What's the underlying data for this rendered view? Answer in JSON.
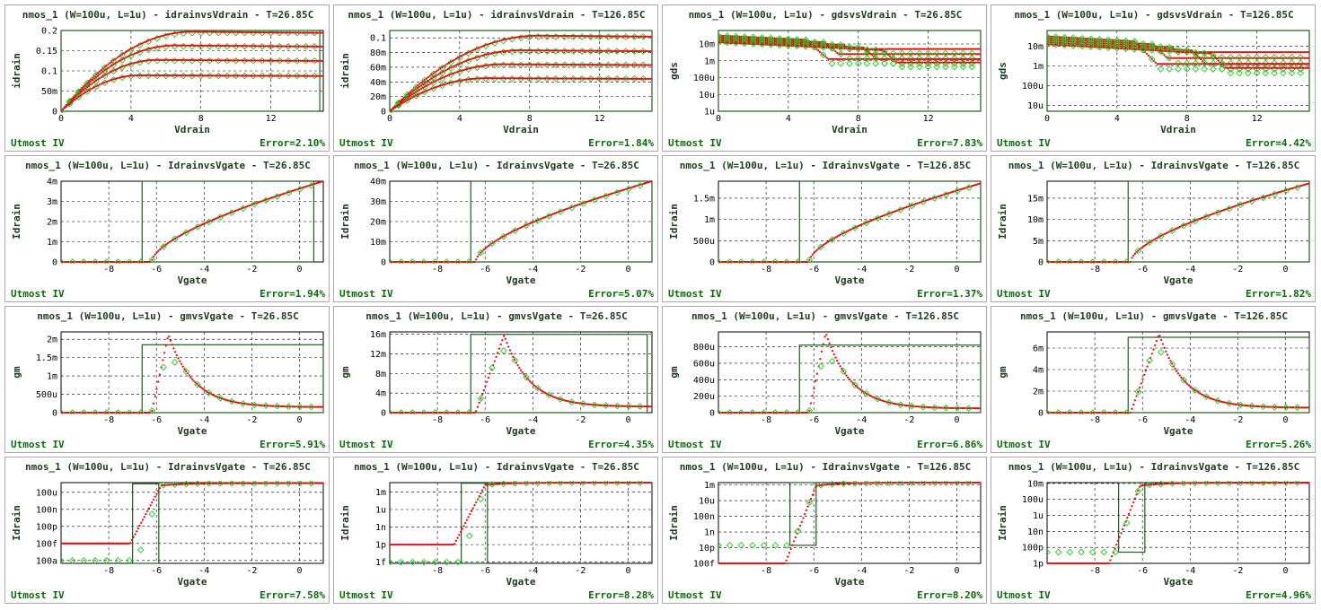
{
  "colors": {
    "measured": "#22cc22",
    "simulated": "#e01010",
    "frame": "#1f5c1f",
    "grid": "#000000",
    "text": "#1e3c1e",
    "footer": "#0b6b0b"
  },
  "footer_label": "Utmost IV",
  "chart_data": [
    {
      "type": "scatter",
      "title": "nmos_1 (W=100u, L=1u) - idrainvsVdrain - T=26.85C",
      "xlabel": "Vdrain",
      "ylabel": "idrain",
      "error": "Error=2.10%",
      "scale": "linear",
      "xlim": [
        0,
        15
      ],
      "ylim": [
        0,
        0.2
      ],
      "xticks": [
        {
          "v": 0,
          "t": "0"
        },
        {
          "v": 4,
          "t": "4"
        },
        {
          "v": 8,
          "t": "8"
        },
        {
          "v": 12,
          "t": "12"
        }
      ],
      "yticks": [
        {
          "v": 0,
          "t": "0"
        },
        {
          "v": 0.05,
          "t": "50m"
        },
        {
          "v": 0.1,
          "t": "0.1"
        },
        {
          "v": 0.15,
          "t": "0.15"
        },
        {
          "v": 0.2,
          "t": "0.2"
        }
      ],
      "box": {
        "x0": 0,
        "x1": 14.8,
        "y0": 0,
        "y1": 0.2
      },
      "kind": "idvd",
      "curves": [
        0.197,
        0.163,
        0.127,
        0.089
      ],
      "vsat": [
        7.5,
        6.5,
        5.5,
        4.5
      ]
    },
    {
      "type": "scatter",
      "title": "nmos_1 (W=100u, L=1u) - idrainvsVdrain - T=126.85C",
      "xlabel": "Vdrain",
      "ylabel": "idrain",
      "error": "Error=1.84%",
      "scale": "linear",
      "xlim": [
        0,
        15
      ],
      "ylim": [
        0,
        0.11
      ],
      "xticks": [
        {
          "v": 0,
          "t": "0"
        },
        {
          "v": 4,
          "t": "4"
        },
        {
          "v": 8,
          "t": "8"
        },
        {
          "v": 12,
          "t": "12"
        }
      ],
      "yticks": [
        {
          "v": 0,
          "t": "0"
        },
        {
          "v": 0.02,
          "t": "20m"
        },
        {
          "v": 0.04,
          "t": "40m"
        },
        {
          "v": 0.06,
          "t": "60m"
        },
        {
          "v": 0.08,
          "t": "80m"
        },
        {
          "v": 0.1,
          "t": "0.1"
        }
      ],
      "box": {
        "x0": 0,
        "x1": 15,
        "y0": 0,
        "y1": 0.11
      },
      "kind": "idvd",
      "curves": [
        0.103,
        0.083,
        0.064,
        0.045
      ],
      "vsat": [
        8.5,
        7.5,
        6.5,
        5.5
      ]
    },
    {
      "type": "scatter",
      "title": "nmos_1 (W=100u, L=1u) - gdsvsVdrain - T=26.85C",
      "xlabel": "Vdrain",
      "ylabel": "gds",
      "error": "Error=7.83%",
      "scale": "log",
      "xlim": [
        0,
        15
      ],
      "ylim": [
        -6,
        -1.2
      ],
      "xticks": [
        {
          "v": 0,
          "t": "0"
        },
        {
          "v": 4,
          "t": "4"
        },
        {
          "v": 8,
          "t": "8"
        },
        {
          "v": 12,
          "t": "12"
        }
      ],
      "yticks": [
        {
          "v": -6,
          "t": "1u"
        },
        {
          "v": -5,
          "t": "10u"
        },
        {
          "v": -4,
          "t": "100u"
        },
        {
          "v": -3,
          "t": "1m"
        },
        {
          "v": -2,
          "t": "10m"
        }
      ],
      "box": {
        "x0": 0,
        "x1": 15,
        "y0": -6,
        "y1": -1.2
      },
      "kind": "gds"
    },
    {
      "type": "scatter",
      "title": "nmos_1 (W=100u, L=1u) - gdsvsVdrain - T=126.85C",
      "xlabel": "Vdrain",
      "ylabel": "gds",
      "error": "Error=4.42%",
      "scale": "log",
      "xlim": [
        0,
        15
      ],
      "ylim": [
        -5.3,
        -1.2
      ],
      "xticks": [
        {
          "v": 0,
          "t": "0"
        },
        {
          "v": 4,
          "t": "4"
        },
        {
          "v": 8,
          "t": "8"
        },
        {
          "v": 12,
          "t": "12"
        }
      ],
      "yticks": [
        {
          "v": -5,
          "t": "10u"
        },
        {
          "v": -4,
          "t": "100u"
        },
        {
          "v": -3,
          "t": "1m"
        },
        {
          "v": -2,
          "t": "10m"
        }
      ],
      "box": {
        "x0": 0,
        "x1": 15,
        "y0": -5.3,
        "y1": -1.2
      },
      "kind": "gds"
    },
    {
      "type": "scatter",
      "title": "nmos_1 (W=100u, L=1u) - IdrainvsVgate - T=26.85C",
      "xlabel": "Vgate",
      "ylabel": "Idrain",
      "error": "Error=1.94%",
      "scale": "linear",
      "xlim": [
        -10,
        1
      ],
      "ylim": [
        0,
        0.004
      ],
      "xticks": [
        {
          "v": -8,
          "t": "-8"
        },
        {
          "v": -6,
          "t": "-6"
        },
        {
          "v": -4,
          "t": "-4"
        },
        {
          "v": -2,
          "t": "-2"
        },
        {
          "v": 0,
          "t": "0"
        }
      ],
      "yticks": [
        {
          "v": 0,
          "t": "0"
        },
        {
          "v": 0.001,
          "t": "1m"
        },
        {
          "v": 0.002,
          "t": "2m"
        },
        {
          "v": 0.003,
          "t": "3m"
        },
        {
          "v": 0.004,
          "t": "4m"
        }
      ],
      "box": {
        "x0": -6.6,
        "x1": 0.6,
        "y0": 0,
        "y1": 0.004
      },
      "kind": "idvg",
      "vth": -6.2,
      "imax": 0.004
    },
    {
      "type": "scatter",
      "title": "nmos_1 (W=100u, L=1u) - IdrainvsVgate - T=26.85C",
      "xlabel": "Vgate",
      "ylabel": "Idrain",
      "error": "Error=5.07%",
      "scale": "linear",
      "xlim": [
        -10,
        1
      ],
      "ylim": [
        0,
        0.04
      ],
      "xticks": [
        {
          "v": -8,
          "t": "-8"
        },
        {
          "v": -6,
          "t": "-6"
        },
        {
          "v": -4,
          "t": "-4"
        },
        {
          "v": -2,
          "t": "-2"
        },
        {
          "v": 0,
          "t": "0"
        }
      ],
      "yticks": [
        {
          "v": 0,
          "t": "0"
        },
        {
          "v": 0.01,
          "t": "10m"
        },
        {
          "v": 0.02,
          "t": "20m"
        },
        {
          "v": 0.03,
          "t": "30m"
        },
        {
          "v": 0.04,
          "t": "40m"
        }
      ],
      "box": {
        "x0": -6.6,
        "x1": 1,
        "y0": 0,
        "y1": 0.04
      },
      "kind": "idvg",
      "vth": -6.4,
      "imax": 0.04
    },
    {
      "type": "scatter",
      "title": "nmos_1 (W=100u, L=1u) - IdrainvsVgate - T=126.85C",
      "xlabel": "Vgate",
      "ylabel": "Idrain",
      "error": "Error=1.37%",
      "scale": "linear",
      "xlim": [
        -10,
        1
      ],
      "ylim": [
        0,
        0.0019
      ],
      "xticks": [
        {
          "v": -8,
          "t": "-8"
        },
        {
          "v": -6,
          "t": "-6"
        },
        {
          "v": -4,
          "t": "-4"
        },
        {
          "v": -2,
          "t": "-2"
        },
        {
          "v": 0,
          "t": "0"
        }
      ],
      "yticks": [
        {
          "v": 0,
          "t": "0"
        },
        {
          "v": 0.0005,
          "t": "500u"
        },
        {
          "v": 0.001,
          "t": "1m"
        },
        {
          "v": 0.0015,
          "t": "1.5m"
        }
      ],
      "box": {
        "x0": -6.6,
        "x1": 1,
        "y0": 0,
        "y1": 0.0019
      },
      "kind": "idvg",
      "vth": -6.2,
      "imax": 0.00185
    },
    {
      "type": "scatter",
      "title": "nmos_1 (W=100u, L=1u) - IdrainvsVgate - T=126.85C",
      "xlabel": "Vgate",
      "ylabel": "Idrain",
      "error": "Error=1.82%",
      "scale": "linear",
      "xlim": [
        -10,
        1
      ],
      "ylim": [
        0,
        0.019
      ],
      "xticks": [
        {
          "v": -8,
          "t": "-8"
        },
        {
          "v": -6,
          "t": "-6"
        },
        {
          "v": -4,
          "t": "-4"
        },
        {
          "v": -2,
          "t": "-2"
        },
        {
          "v": 0,
          "t": "0"
        }
      ],
      "yticks": [
        {
          "v": 0,
          "t": "0"
        },
        {
          "v": 0.005,
          "t": "5m"
        },
        {
          "v": 0.01,
          "t": "10m"
        },
        {
          "v": 0.015,
          "t": "15m"
        }
      ],
      "box": {
        "x0": -6.6,
        "x1": 1,
        "y0": 0,
        "y1": 0.019
      },
      "kind": "idvg",
      "vth": -6.5,
      "imax": 0.0185
    },
    {
      "type": "scatter",
      "title": "nmos_1 (W=100u, L=1u) - gmvsVgate - T=26.85C",
      "xlabel": "Vgate",
      "ylabel": "gm",
      "error": "Error=5.91%",
      "scale": "linear",
      "xlim": [
        -10,
        1
      ],
      "ylim": [
        0,
        0.0022
      ],
      "xticks": [
        {
          "v": -8,
          "t": "-8"
        },
        {
          "v": -6,
          "t": "-6"
        },
        {
          "v": -4,
          "t": "-4"
        },
        {
          "v": -2,
          "t": "-2"
        },
        {
          "v": 0,
          "t": "0"
        }
      ],
      "yticks": [
        {
          "v": 0,
          "t": "0"
        },
        {
          "v": 0.0005,
          "t": "500u"
        },
        {
          "v": 0.001,
          "t": "1m"
        },
        {
          "v": 0.0015,
          "t": "1.5m"
        },
        {
          "v": 0.002,
          "t": "2m"
        }
      ],
      "box": {
        "x0": -6.6,
        "x1": 1,
        "y0": 0,
        "y1": 0.00185
      },
      "kind": "gm",
      "vth": -6.2,
      "peakx": -5.5,
      "peak": 0.00213,
      "tail": 0.00015
    },
    {
      "type": "scatter",
      "title": "nmos_1 (W=100u, L=1u) - gmvsVgate - T=26.85C",
      "xlabel": "Vgate",
      "ylabel": "gm",
      "error": "Error=4.35%",
      "scale": "linear",
      "xlim": [
        -10,
        1
      ],
      "ylim": [
        0,
        0.0165
      ],
      "xticks": [
        {
          "v": -8,
          "t": "-8"
        },
        {
          "v": -6,
          "t": "-6"
        },
        {
          "v": -4,
          "t": "-4"
        },
        {
          "v": -2,
          "t": "-2"
        },
        {
          "v": 0,
          "t": "0"
        }
      ],
      "yticks": [
        {
          "v": 0,
          "t": "0"
        },
        {
          "v": 0.004,
          "t": "4m"
        },
        {
          "v": 0.008,
          "t": "8m"
        },
        {
          "v": 0.012,
          "t": "12m"
        },
        {
          "v": 0.016,
          "t": "16m"
        }
      ],
      "box": {
        "x0": -6.6,
        "x1": 0.8,
        "y0": 0,
        "y1": 0.016
      },
      "kind": "gm",
      "vth": -6.4,
      "peakx": -5.2,
      "peak": 0.0158,
      "tail": 0.0012
    },
    {
      "type": "scatter",
      "title": "nmos_1 (W=100u, L=1u) - gmvsVgate - T=126.85C",
      "xlabel": "Vgate",
      "ylabel": "gm",
      "error": "Error=6.86%",
      "scale": "linear",
      "xlim": [
        -10,
        1
      ],
      "ylim": [
        0,
        0.00098
      ],
      "xticks": [
        {
          "v": -8,
          "t": "-8"
        },
        {
          "v": -6,
          "t": "-6"
        },
        {
          "v": -4,
          "t": "-4"
        },
        {
          "v": -2,
          "t": "-2"
        },
        {
          "v": 0,
          "t": "0"
        }
      ],
      "yticks": [
        {
          "v": 0,
          "t": "0"
        },
        {
          "v": 0.0002,
          "t": "200u"
        },
        {
          "v": 0.0004,
          "t": "400u"
        },
        {
          "v": 0.0006,
          "t": "600u"
        },
        {
          "v": 0.0008,
          "t": "800u"
        }
      ],
      "box": {
        "x0": -6.6,
        "x1": 1,
        "y0": 0,
        "y1": 0.00082
      },
      "kind": "gm",
      "vth": -6.2,
      "peakx": -5.5,
      "peak": 0.00097,
      "tail": 5e-05
    },
    {
      "type": "scatter",
      "title": "nmos_1 (W=100u, L=1u) - gmvsVgate - T=126.85C",
      "xlabel": "Vgate",
      "ylabel": "gm",
      "error": "Error=5.26%",
      "scale": "linear",
      "xlim": [
        -10,
        1
      ],
      "ylim": [
        0,
        0.0075
      ],
      "xticks": [
        {
          "v": -8,
          "t": "-8"
        },
        {
          "v": -6,
          "t": "-6"
        },
        {
          "v": -4,
          "t": "-4"
        },
        {
          "v": -2,
          "t": "-2"
        },
        {
          "v": 0,
          "t": "0"
        }
      ],
      "yticks": [
        {
          "v": 0,
          "t": "0"
        },
        {
          "v": 0.002,
          "t": "2m"
        },
        {
          "v": 0.004,
          "t": "4m"
        },
        {
          "v": 0.006,
          "t": "6m"
        }
      ],
      "box": {
        "x0": -6.6,
        "x1": 1,
        "y0": 0,
        "y1": 0.007
      },
      "kind": "gm",
      "vth": -6.5,
      "peakx": -5.3,
      "peak": 0.0073,
      "tail": 0.00045
    },
    {
      "type": "scatter",
      "title": "nmos_1 (W=100u, L=1u) - IdrainvsVgate - T=26.85C",
      "xlabel": "Vgate",
      "ylabel": "Idrain",
      "error": "Error=7.58%",
      "scale": "log",
      "xlim": [
        -10,
        1
      ],
      "ylim": [
        -16.5,
        -2.3
      ],
      "xticks": [
        {
          "v": -8,
          "t": "-8"
        },
        {
          "v": -6,
          "t": "-6"
        },
        {
          "v": -4,
          "t": "-4"
        },
        {
          "v": -2,
          "t": "-2"
        },
        {
          "v": 0,
          "t": "0"
        }
      ],
      "yticks": [
        {
          "v": -16,
          "t": "100a"
        },
        {
          "v": -13,
          "t": "100f"
        },
        {
          "v": -10,
          "t": "100p"
        },
        {
          "v": -7,
          "t": "100n"
        },
        {
          "v": -4,
          "t": "100u"
        }
      ],
      "box": {
        "x0": -7,
        "x1": -5.9,
        "y0": -16.5,
        "y1": -2.5
      },
      "kind": "sub",
      "floorSim": -13,
      "floorMeas": -16,
      "vth": -6.2,
      "top": -2.4
    },
    {
      "type": "scatter",
      "title": "nmos_1 (W=100u, L=1u) - IdrainvsVgate - T=26.85C",
      "xlabel": "Vgate",
      "ylabel": "Idrain",
      "error": "Error=8.28%",
      "scale": "log",
      "xlim": [
        -10,
        1
      ],
      "ylim": [
        -15.2,
        -1.4
      ],
      "xticks": [
        {
          "v": -8,
          "t": "-8"
        },
        {
          "v": -6,
          "t": "-6"
        },
        {
          "v": -4,
          "t": "-4"
        },
        {
          "v": -2,
          "t": "-2"
        },
        {
          "v": 0,
          "t": "0"
        }
      ],
      "yticks": [
        {
          "v": -15,
          "t": "1f"
        },
        {
          "v": -12,
          "t": "1p"
        },
        {
          "v": -9,
          "t": "1n"
        },
        {
          "v": -6,
          "t": "1u"
        },
        {
          "v": -3,
          "t": "1m"
        }
      ],
      "box": {
        "x0": -7,
        "x1": -5.9,
        "y0": -15.2,
        "y1": -1.5
      },
      "kind": "sub",
      "floorSim": -12,
      "floorMeas": -15,
      "vth": -6.4,
      "top": -1.4
    },
    {
      "type": "scatter",
      "title": "nmos_1 (W=100u, L=1u) - IdrainvsVgate - T=126.85C",
      "xlabel": "Vgate",
      "ylabel": "Idrain",
      "error": "Error=8.20%",
      "scale": "log",
      "xlim": [
        -10,
        1
      ],
      "ylim": [
        -13,
        -2.7
      ],
      "xticks": [
        {
          "v": -8,
          "t": "-8"
        },
        {
          "v": -6,
          "t": "-6"
        },
        {
          "v": -4,
          "t": "-4"
        },
        {
          "v": -2,
          "t": "-2"
        },
        {
          "v": 0,
          "t": "0"
        }
      ],
      "yticks": [
        {
          "v": -13,
          "t": "100f"
        },
        {
          "v": -11,
          "t": "10p"
        },
        {
          "v": -9,
          "t": "1n"
        },
        {
          "v": -7,
          "t": "100n"
        },
        {
          "v": -5,
          "t": "10u"
        },
        {
          "v": -3,
          "t": "1m"
        }
      ],
      "box": {
        "x0": -7,
        "x1": -5.9,
        "y0": -10.7,
        "y1": -2.7
      },
      "kind": "sub",
      "floorSim": -13,
      "floorMeas": -10.7,
      "vth": -6.3,
      "top": -2.7
    },
    {
      "type": "scatter",
      "title": "nmos_1 (W=100u, L=1u) - IdrainvsVgate - T=126.85C",
      "xlabel": "Vgate",
      "ylabel": "Idrain",
      "error": "Error=4.96%",
      "scale": "log",
      "xlim": [
        -10,
        1
      ],
      "ylim": [
        -12,
        -1.9
      ],
      "xticks": [
        {
          "v": -8,
          "t": "-8"
        },
        {
          "v": -6,
          "t": "-6"
        },
        {
          "v": -4,
          "t": "-4"
        },
        {
          "v": -2,
          "t": "-2"
        },
        {
          "v": 0,
          "t": "0"
        }
      ],
      "yticks": [
        {
          "v": -12,
          "t": "1p"
        },
        {
          "v": -10,
          "t": "100p"
        },
        {
          "v": -8,
          "t": "10n"
        },
        {
          "v": -6,
          "t": "1u"
        },
        {
          "v": -4,
          "t": "100u"
        },
        {
          "v": -2,
          "t": "10m"
        }
      ],
      "box": {
        "x0": -7,
        "x1": -5.9,
        "y0": -10.6,
        "y1": -1.9
      },
      "kind": "sub",
      "floorSim": -12,
      "floorMeas": -10.6,
      "vth": -6.5,
      "top": -1.9
    }
  ]
}
